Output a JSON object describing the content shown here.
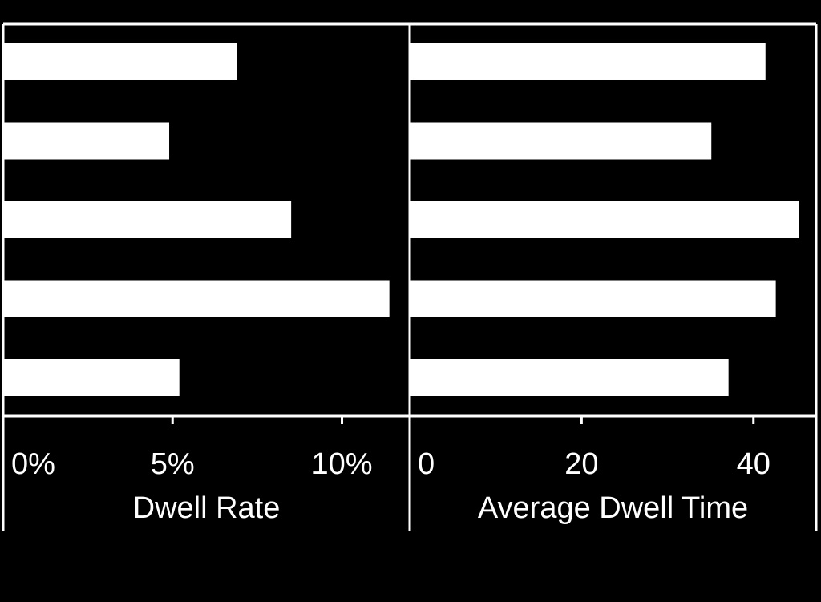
{
  "colors": {
    "background": "#000000",
    "foreground": "#ffffff",
    "bar": "#ffffff"
  },
  "chart_data": [
    {
      "type": "bar",
      "orientation": "horizontal",
      "categories": [
        "",
        "",
        "",
        "",
        ""
      ],
      "values": [
        6.9,
        4.9,
        8.5,
        11.4,
        5.2
      ],
      "xlabel": "Dwell Rate",
      "xlim": [
        0,
        12
      ],
      "ticks": [
        0,
        5,
        10
      ],
      "tick_labels": [
        "0%",
        "5%",
        "10%"
      ],
      "grid": false
    },
    {
      "type": "bar",
      "orientation": "horizontal",
      "categories": [
        "",
        "",
        "",
        "",
        ""
      ],
      "values": [
        41.4,
        35.1,
        45.3,
        42.6,
        37.1
      ],
      "xlabel": "Average Dwell Time",
      "xlim": [
        0,
        47.3
      ],
      "ticks": [
        0,
        20,
        40
      ],
      "tick_labels": [
        "0",
        "20",
        "40"
      ],
      "grid": false
    }
  ]
}
